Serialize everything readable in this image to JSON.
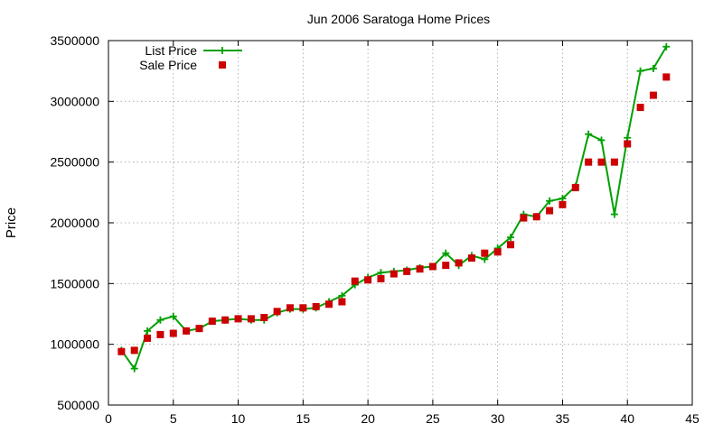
{
  "chart_data": {
    "type": "line",
    "title": "Jun 2006 Saratoga Home Prices",
    "xlabel": "",
    "ylabel": "Price",
    "xlim": [
      0,
      45
    ],
    "ylim": [
      500000,
      3500000
    ],
    "xticks": [
      0,
      5,
      10,
      15,
      20,
      25,
      30,
      35,
      40,
      45
    ],
    "yticks": [
      500000,
      1000000,
      1500000,
      2000000,
      2500000,
      3000000,
      3500000
    ],
    "grid": true,
    "legend_position": "top-left",
    "series": [
      {
        "name": "List Price",
        "style": "line-plus",
        "color": "#00a000",
        "x": [
          1,
          2,
          3,
          4,
          5,
          6,
          7,
          8,
          9,
          10,
          11,
          12,
          13,
          14,
          15,
          16,
          17,
          18,
          19,
          20,
          21,
          22,
          23,
          24,
          25,
          26,
          27,
          28,
          29,
          30,
          31,
          32,
          33,
          34,
          35,
          36,
          37,
          38,
          39,
          40,
          41,
          42,
          43
        ],
        "values": [
          950000,
          800000,
          1110000,
          1200000,
          1230000,
          1110000,
          1130000,
          1190000,
          1200000,
          1210000,
          1200000,
          1200000,
          1260000,
          1290000,
          1290000,
          1300000,
          1350000,
          1400000,
          1490000,
          1550000,
          1590000,
          1600000,
          1610000,
          1630000,
          1640000,
          1750000,
          1650000,
          1730000,
          1700000,
          1790000,
          1880000,
          2070000,
          2050000,
          2180000,
          2200000,
          2300000,
          2730000,
          2680000,
          2070000,
          2700000,
          3250000,
          3270000,
          3450000
        ]
      },
      {
        "name": "Sale Price",
        "style": "square-points",
        "color": "#cc0000",
        "x": [
          1,
          2,
          3,
          4,
          5,
          6,
          7,
          8,
          9,
          10,
          11,
          12,
          13,
          14,
          15,
          16,
          17,
          18,
          19,
          20,
          21,
          22,
          23,
          24,
          25,
          26,
          27,
          28,
          29,
          30,
          31,
          32,
          33,
          34,
          35,
          36,
          37,
          38,
          39,
          40,
          41,
          42,
          43
        ],
        "values": [
          940000,
          950000,
          1050000,
          1080000,
          1090000,
          1110000,
          1130000,
          1190000,
          1200000,
          1210000,
          1210000,
          1220000,
          1270000,
          1300000,
          1300000,
          1310000,
          1330000,
          1350000,
          1520000,
          1530000,
          1540000,
          1580000,
          1600000,
          1620000,
          1640000,
          1650000,
          1670000,
          1710000,
          1750000,
          1760000,
          1820000,
          2040000,
          2050000,
          2100000,
          2150000,
          2290000,
          2500000,
          2500000,
          2500000,
          2650000,
          2950000,
          3050000,
          3200000
        ]
      }
    ]
  }
}
